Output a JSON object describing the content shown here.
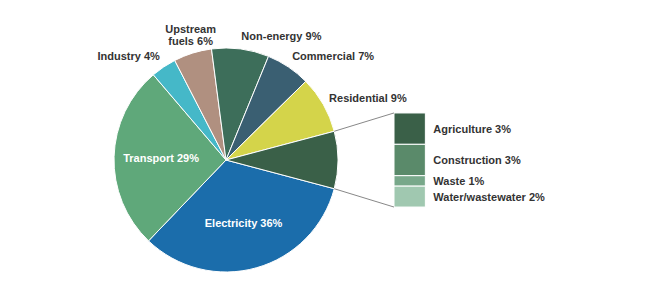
{
  "chart_data": {
    "type": "pie",
    "values": [
      36,
      29,
      4,
      6,
      9,
      7,
      9,
      9
    ],
    "value_labels": [
      "Electricity 36%",
      "Transport 29%",
      "Industry 4%",
      "Upstream\nfuels 6%",
      "Non-energy 9%",
      "Commercial 7%",
      "Residential 9%",
      null
    ],
    "colors": [
      "#1b6dab",
      "#5fa87a",
      "#45b8c8",
      "#b09080",
      "#3d6e5a",
      "#3a5f72",
      "#d4d44a",
      "#3a6048"
    ],
    "breakdown": {
      "type": "bar",
      "stacked": true,
      "values": [
        3,
        3,
        1,
        2
      ],
      "value_labels": [
        "Agriculture 3%",
        "Construction 3%",
        "Waste 1%",
        "Water/wastewater 2%"
      ],
      "colors": [
        "#3a6048",
        "#5a8a6a",
        "#78a88a",
        "#a0c8b0"
      ]
    }
  }
}
